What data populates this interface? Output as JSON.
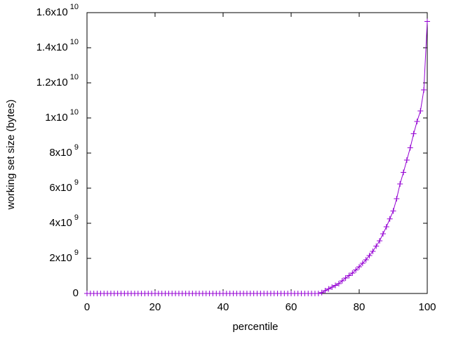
{
  "chart_data": {
    "type": "line",
    "xlabel": "percentile",
    "ylabel": "working set size (bytes)",
    "x": [
      0,
      1,
      2,
      3,
      4,
      5,
      6,
      7,
      8,
      9,
      10,
      11,
      12,
      13,
      14,
      15,
      16,
      17,
      18,
      19,
      20,
      21,
      22,
      23,
      24,
      25,
      26,
      27,
      28,
      29,
      30,
      31,
      32,
      33,
      34,
      35,
      36,
      37,
      38,
      39,
      40,
      41,
      42,
      43,
      44,
      45,
      46,
      47,
      48,
      49,
      50,
      51,
      52,
      53,
      54,
      55,
      56,
      57,
      58,
      59,
      60,
      61,
      62,
      63,
      64,
      65,
      66,
      67,
      68,
      69,
      70,
      71,
      72,
      73,
      74,
      75,
      76,
      77,
      78,
      79,
      80,
      81,
      82,
      83,
      84,
      85,
      86,
      87,
      88,
      89,
      90,
      91,
      92,
      93,
      94,
      95,
      96,
      97,
      98,
      99,
      100
    ],
    "series": [
      {
        "color": "#9400d3",
        "values": [
          0,
          0,
          0,
          0,
          0,
          0,
          0,
          0,
          0,
          0,
          0,
          0,
          0,
          0,
          0,
          0,
          0,
          0,
          0,
          0,
          0,
          0,
          0,
          0,
          0,
          0,
          0,
          0,
          0,
          0,
          0,
          0,
          0,
          0,
          0,
          0,
          0,
          0,
          0,
          0,
          0,
          0,
          0,
          0,
          0,
          0,
          0,
          0,
          0,
          0,
          0,
          0,
          0,
          0,
          0,
          0,
          0,
          0,
          0,
          0,
          0,
          0,
          0,
          0,
          0,
          0,
          0,
          0,
          0,
          50000000,
          160000000,
          260000000,
          360000000,
          460000000,
          560000000,
          720000000,
          880000000,
          1020000000,
          1160000000,
          1340000000,
          1520000000,
          1720000000,
          1920000000,
          2160000000,
          2400000000,
          2700000000,
          3000000000,
          3400000000,
          3800000000,
          4250000000,
          4700000000,
          5400000000,
          6240000000,
          6900000000,
          7600000000,
          8300000000,
          9100000000,
          9800000000,
          10400000000,
          11600000000,
          15500000000
        ]
      }
    ],
    "xlim": [
      0,
      100
    ],
    "xticks": [
      0,
      20,
      40,
      60,
      80,
      100
    ],
    "ylim": [
      0,
      16000000000
    ],
    "yticks": [
      0,
      {
        "value": 2000000000,
        "label": "2x10",
        "exponent": "9"
      },
      {
        "value": 4000000000,
        "label": "4x10",
        "exponent": "9"
      },
      {
        "value": 6000000000,
        "label": "6x10",
        "exponent": "9"
      },
      {
        "value": 8000000000,
        "label": "8x10",
        "exponent": "9"
      },
      {
        "value": 10000000000,
        "label": "1x10",
        "exponent": "10"
      },
      {
        "value": 12000000000,
        "label": "1.2x10",
        "exponent": "10"
      },
      {
        "value": 14000000000,
        "label": "1.4x10",
        "exponent": "10"
      },
      {
        "value": 16000000000,
        "label": "1.6x10",
        "exponent": "10"
      }
    ],
    "grid": false
  }
}
